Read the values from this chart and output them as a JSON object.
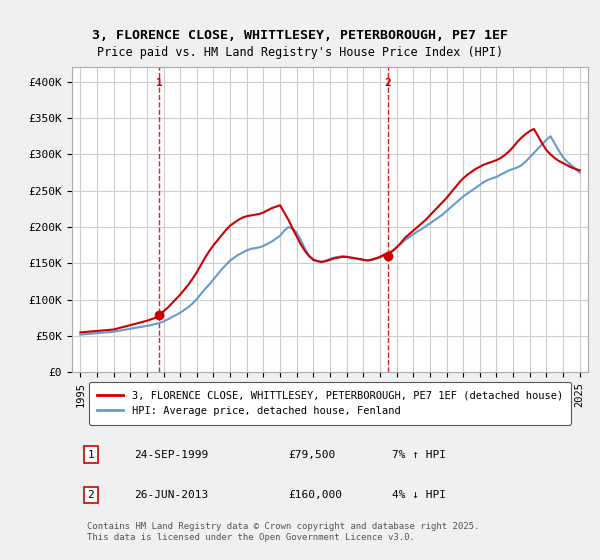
{
  "title_line1": "3, FLORENCE CLOSE, WHITTLESEY, PETERBOROUGH, PE7 1EF",
  "title_line2": "Price paid vs. HM Land Registry's House Price Index (HPI)",
  "ylabel_ticks": [
    "£0",
    "£50K",
    "£100K",
    "£150K",
    "£200K",
    "£250K",
    "£300K",
    "£350K",
    "£400K"
  ],
  "ytick_values": [
    0,
    50000,
    100000,
    150000,
    200000,
    250000,
    300000,
    350000,
    400000
  ],
  "ylim": [
    0,
    420000
  ],
  "xlim_start": 1994.5,
  "xlim_end": 2025.5,
  "xticks": [
    1995,
    1996,
    1997,
    1998,
    1999,
    2000,
    2001,
    2002,
    2003,
    2004,
    2005,
    2006,
    2007,
    2008,
    2009,
    2010,
    2011,
    2012,
    2013,
    2014,
    2015,
    2016,
    2017,
    2018,
    2019,
    2020,
    2021,
    2022,
    2023,
    2024,
    2025
  ],
  "bg_color": "#f0f0f0",
  "plot_bg_color": "#ffffff",
  "grid_color": "#cccccc",
  "red_line_color": "#cc0000",
  "blue_line_color": "#6699cc",
  "marker1_date": 1999.73,
  "marker1_price": 79500,
  "marker2_date": 2013.49,
  "marker2_price": 160000,
  "marker1_vline_x": 1999.73,
  "marker2_vline_x": 2013.49,
  "legend_red_label": "3, FLORENCE CLOSE, WHITTLESEY, PETERBOROUGH, PE7 1EF (detached house)",
  "legend_blue_label": "HPI: Average price, detached house, Fenland",
  "annot1_num": "1",
  "annot1_date": "24-SEP-1999",
  "annot1_price": "£79,500",
  "annot1_hpi": "7% ↑ HPI",
  "annot2_num": "2",
  "annot2_date": "26-JUN-2013",
  "annot2_price": "£160,000",
  "annot2_hpi": "4% ↓ HPI",
  "footer": "Contains HM Land Registry data © Crown copyright and database right 2025.\nThis data is licensed under the Open Government Licence v3.0.",
  "hpi_years": [
    1995.0,
    1995.25,
    1995.5,
    1995.75,
    1996.0,
    1996.25,
    1996.5,
    1996.75,
    1997.0,
    1997.25,
    1997.5,
    1997.75,
    1998.0,
    1998.25,
    1998.5,
    1998.75,
    1999.0,
    1999.25,
    1999.5,
    1999.75,
    2000.0,
    2000.25,
    2000.5,
    2000.75,
    2001.0,
    2001.25,
    2001.5,
    2001.75,
    2002.0,
    2002.25,
    2002.5,
    2002.75,
    2003.0,
    2003.25,
    2003.5,
    2003.75,
    2004.0,
    2004.25,
    2004.5,
    2004.75,
    2005.0,
    2005.25,
    2005.5,
    2005.75,
    2006.0,
    2006.25,
    2006.5,
    2006.75,
    2007.0,
    2007.25,
    2007.5,
    2007.75,
    2008.0,
    2008.25,
    2008.5,
    2008.75,
    2009.0,
    2009.25,
    2009.5,
    2009.75,
    2010.0,
    2010.25,
    2010.5,
    2010.75,
    2011.0,
    2011.25,
    2011.5,
    2011.75,
    2012.0,
    2012.25,
    2012.5,
    2012.75,
    2013.0,
    2013.25,
    2013.5,
    2013.75,
    2014.0,
    2014.25,
    2014.5,
    2014.75,
    2015.0,
    2015.25,
    2015.5,
    2015.75,
    2016.0,
    2016.25,
    2016.5,
    2016.75,
    2017.0,
    2017.25,
    2017.5,
    2017.75,
    2018.0,
    2018.25,
    2018.5,
    2018.75,
    2019.0,
    2019.25,
    2019.5,
    2019.75,
    2020.0,
    2020.25,
    2020.5,
    2020.75,
    2021.0,
    2021.25,
    2021.5,
    2021.75,
    2022.0,
    2022.25,
    2022.5,
    2022.75,
    2023.0,
    2023.25,
    2023.5,
    2023.75,
    2024.0,
    2024.25,
    2024.5,
    2024.75,
    2025.0
  ],
  "hpi_values": [
    52000,
    52500,
    53000,
    53500,
    54000,
    54500,
    55000,
    55500,
    56000,
    57000,
    58000,
    59000,
    60000,
    61000,
    62000,
    63000,
    64000,
    65000,
    66500,
    68000,
    70000,
    73000,
    76000,
    79000,
    82000,
    86000,
    90000,
    95000,
    101000,
    108000,
    115000,
    121000,
    128000,
    135000,
    142000,
    148000,
    154000,
    158000,
    162000,
    165000,
    168000,
    170000,
    171000,
    172000,
    174000,
    177000,
    180000,
    184000,
    188000,
    195000,
    200000,
    198000,
    192000,
    182000,
    170000,
    160000,
    155000,
    153000,
    152000,
    154000,
    156000,
    158000,
    159000,
    160000,
    159000,
    158000,
    157000,
    156000,
    155000,
    154000,
    155000,
    156000,
    158000,
    160000,
    163000,
    167000,
    172000,
    177000,
    182000,
    186000,
    190000,
    194000,
    197000,
    201000,
    205000,
    209000,
    213000,
    217000,
    222000,
    227000,
    232000,
    237000,
    242000,
    246000,
    250000,
    254000,
    258000,
    262000,
    265000,
    267000,
    269000,
    272000,
    275000,
    278000,
    280000,
    282000,
    285000,
    290000,
    296000,
    302000,
    308000,
    314000,
    320000,
    325000,
    315000,
    305000,
    296000,
    290000,
    285000,
    280000,
    275000
  ],
  "property_years": [
    1995.0,
    1995.25,
    1995.5,
    1995.75,
    1996.0,
    1996.25,
    1996.5,
    1996.75,
    1997.0,
    1997.25,
    1997.5,
    1997.75,
    1998.0,
    1998.25,
    1998.5,
    1998.75,
    1999.0,
    1999.25,
    1999.5,
    1999.75,
    2000.0,
    2000.25,
    2000.5,
    2000.75,
    2001.0,
    2001.25,
    2001.5,
    2001.75,
    2002.0,
    2002.25,
    2002.5,
    2002.75,
    2003.0,
    2003.25,
    2003.5,
    2003.75,
    2004.0,
    2004.25,
    2004.5,
    2004.75,
    2005.0,
    2005.25,
    2005.5,
    2005.75,
    2006.0,
    2006.25,
    2006.5,
    2006.75,
    2007.0,
    2007.25,
    2007.5,
    2007.75,
    2008.0,
    2008.25,
    2008.5,
    2008.75,
    2009.0,
    2009.25,
    2009.5,
    2009.75,
    2010.0,
    2010.25,
    2010.5,
    2010.75,
    2011.0,
    2011.25,
    2011.5,
    2011.75,
    2012.0,
    2012.25,
    2012.5,
    2012.75,
    2013.0,
    2013.25,
    2013.5,
    2013.75,
    2014.0,
    2014.25,
    2014.5,
    2014.75,
    2015.0,
    2015.25,
    2015.5,
    2015.75,
    2016.0,
    2016.25,
    2016.5,
    2016.75,
    2017.0,
    2017.25,
    2017.5,
    2017.75,
    2018.0,
    2018.25,
    2018.5,
    2018.75,
    2019.0,
    2019.25,
    2019.5,
    2019.75,
    2020.0,
    2020.25,
    2020.5,
    2020.75,
    2021.0,
    2021.25,
    2021.5,
    2021.75,
    2022.0,
    2022.25,
    2022.5,
    2022.75,
    2023.0,
    2023.25,
    2023.5,
    2023.75,
    2024.0,
    2024.25,
    2024.5,
    2024.75,
    2025.0
  ],
  "property_values": [
    55000,
    55500,
    56000,
    56500,
    57000,
    57500,
    58000,
    58500,
    59000,
    60500,
    62000,
    63500,
    65000,
    66500,
    68000,
    69500,
    71000,
    73000,
    75000,
    79500,
    84000,
    89000,
    95000,
    101000,
    107000,
    114000,
    121000,
    129000,
    138000,
    148000,
    158000,
    167000,
    175000,
    182000,
    189000,
    196000,
    202000,
    206000,
    210000,
    213000,
    215000,
    216000,
    217000,
    218000,
    220000,
    223000,
    226000,
    228000,
    230000,
    220000,
    210000,
    198000,
    187000,
    176000,
    167000,
    160000,
    155000,
    153000,
    152000,
    153000,
    155000,
    157000,
    158000,
    159000,
    159000,
    158000,
    157000,
    156000,
    155000,
    154000,
    155000,
    157000,
    159000,
    162000,
    164000,
    167000,
    172000,
    178000,
    185000,
    190000,
    195000,
    200000,
    205000,
    210000,
    216000,
    222000,
    228000,
    234000,
    240000,
    247000,
    254000,
    261000,
    267000,
    272000,
    276000,
    280000,
    283000,
    286000,
    288000,
    290000,
    292000,
    295000,
    299000,
    304000,
    310000,
    317000,
    323000,
    328000,
    332000,
    335000,
    325000,
    315000,
    306000,
    300000,
    295000,
    291000,
    288000,
    285000,
    282000,
    280000,
    278000
  ]
}
